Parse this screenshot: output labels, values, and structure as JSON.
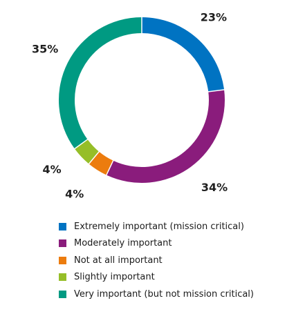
{
  "chart_data": {
    "type": "pie",
    "donut": true,
    "start_angle_deg": 0,
    "direction": "clockwise",
    "title": "",
    "legend_position": "bottom",
    "slices": [
      {
        "name": "Extremely important (mission critical)",
        "value": 23,
        "label": "23%",
        "color": "#0073c2"
      },
      {
        "name": "Moderately important",
        "value": 34,
        "label": "34%",
        "color": "#8a1c7c"
      },
      {
        "name": "Not at all important",
        "value": 4,
        "label": "4%",
        "color": "#ec7c0e"
      },
      {
        "name": "Slightly important",
        "value": 4,
        "label": "4%",
        "color": "#96be28"
      },
      {
        "name": "Very important (but not mission critical)",
        "value": 35,
        "label": "35%",
        "color": "#009a82"
      }
    ]
  }
}
